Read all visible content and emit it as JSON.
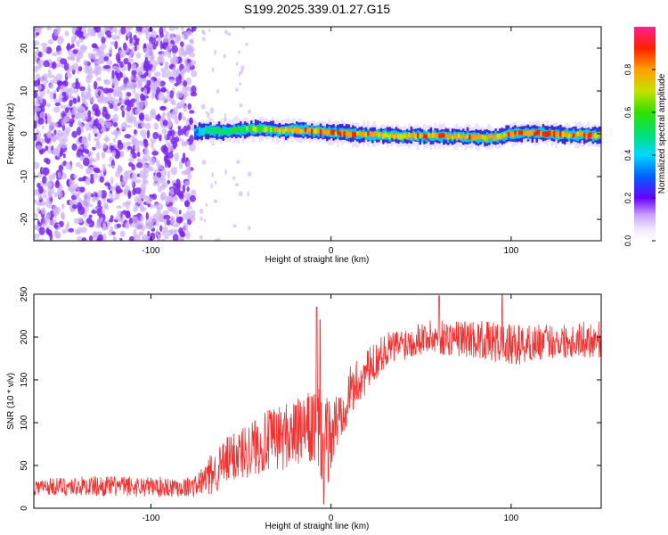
{
  "title": "S199.2025.339.01.27.G15",
  "chart_data": [
    {
      "type": "heatmap",
      "name": "spectrogram",
      "xlabel": "Height of straight line (km)",
      "ylabel": "Frequency (Hz)",
      "xlim": [
        -165,
        150
      ],
      "ylim": [
        -25,
        25
      ],
      "xticks": [
        -100,
        0,
        100
      ],
      "yticks": [
        -20,
        -10,
        0,
        10,
        20
      ],
      "noise_region_x": [
        -165,
        -76
      ],
      "signal_start_x": -76,
      "signal_trace": {
        "x": [
          -76,
          -70,
          -60,
          -50,
          -40,
          -30,
          -20,
          -10,
          0,
          10,
          20,
          30,
          40,
          50,
          60,
          70,
          80,
          90,
          100,
          110,
          120,
          130,
          140,
          150
        ],
        "freq": [
          0.2,
          0.8,
          0.5,
          1.0,
          1.2,
          0.7,
          0.9,
          0.6,
          0.3,
          0.0,
          -0.2,
          -0.4,
          -0.5,
          -0.6,
          -0.6,
          -0.7,
          -0.8,
          -0.9,
          0.0,
          0.2,
          0.1,
          -0.2,
          -0.3,
          -0.4
        ],
        "amplitude": [
          0.35,
          0.55,
          0.6,
          0.65,
          0.75,
          0.8,
          0.85,
          0.9,
          0.9,
          0.92,
          0.92,
          0.8,
          0.85,
          0.88,
          0.9,
          0.9,
          0.88,
          0.85,
          0.92,
          0.95,
          0.95,
          0.9,
          0.9,
          0.9
        ]
      },
      "colorbar": {
        "label": "Normalized spectral amplitude",
        "range": [
          0,
          1
        ],
        "ticks": [
          "0.0",
          "0.2",
          "0.4",
          "0.6",
          "0.8"
        ],
        "tick_values": [
          0,
          0.2,
          0.4,
          0.6,
          0.8
        ]
      }
    },
    {
      "type": "line",
      "name": "snr",
      "xlabel": "Height of straight line (km)",
      "ylabel": "SNR (10 * v/v)",
      "xlim": [
        -165,
        150
      ],
      "ylim": [
        0,
        250
      ],
      "xticks": [
        -100,
        0,
        100
      ],
      "yticks": [
        0,
        50,
        100,
        150,
        200,
        250
      ],
      "color": "#f03232",
      "envelope": {
        "x": [
          -165,
          -130,
          -90,
          -76,
          -66,
          -55,
          -40,
          -25,
          -15,
          -8,
          -4,
          0,
          5,
          10,
          20,
          30,
          50,
          80,
          100,
          120,
          150
        ],
        "mean": [
          25,
          26,
          25,
          25,
          40,
          60,
          75,
          85,
          90,
          95,
          70,
          85,
          110,
          135,
          160,
          185,
          200,
          198,
          190,
          195,
          198
        ],
        "spread": [
          10,
          12,
          12,
          12,
          25,
          30,
          35,
          40,
          40,
          50,
          60,
          45,
          35,
          30,
          25,
          20,
          20,
          22,
          25,
          20,
          22
        ]
      },
      "spikes": [
        {
          "x": -8,
          "y": 235
        },
        {
          "x": -6,
          "y": 220
        },
        {
          "x": -4,
          "y": 5
        },
        {
          "x": 60,
          "y": 248
        },
        {
          "x": 95,
          "y": 250
        }
      ]
    }
  ]
}
